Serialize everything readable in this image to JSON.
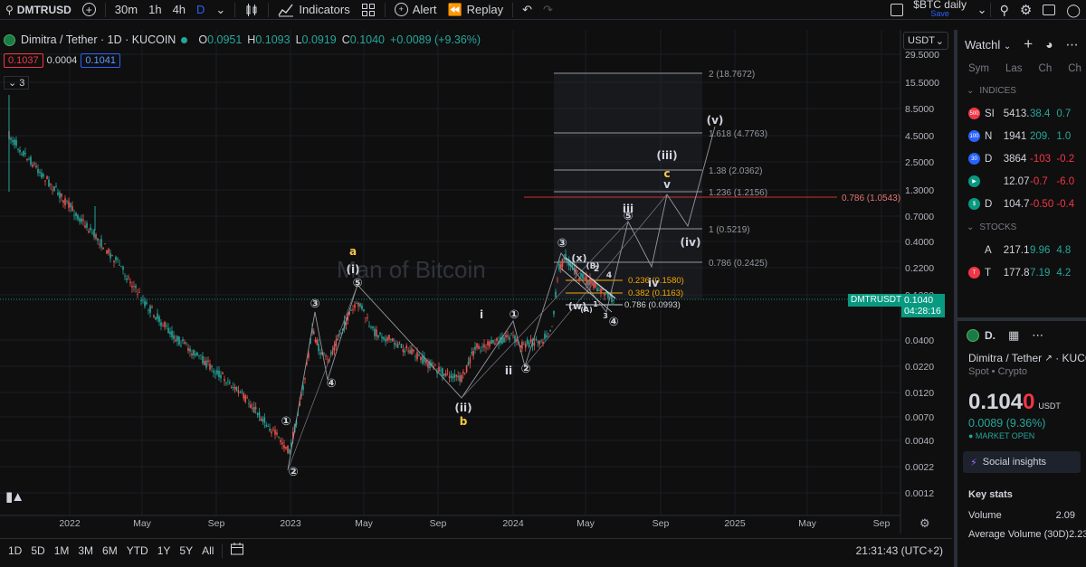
{
  "toolbar": {
    "symbol": "DMTRUSD",
    "timeframes": [
      "30m",
      "1h",
      "4h",
      "D"
    ],
    "indicators": "Indicators",
    "alert": "Alert",
    "replay": "Replay",
    "layout_name": "$BTC daily",
    "layout_save": "Save"
  },
  "legend": {
    "title": "Dimitra / Tether · 1D · KUCOIN",
    "o_label": "O",
    "o_value": "0.0951",
    "h_label": "H",
    "h_value": "0.1093",
    "l_label": "L",
    "l_value": "0.0919",
    "c_label": "C",
    "c_value": "0.1040",
    "change": "+0.0089 (+9.36%)",
    "bid": "0.1037",
    "spread": "0.0004",
    "ask": "0.1041",
    "indicator_count": "3"
  },
  "currency_selector": "USDT",
  "price_axis": [
    "29.5000",
    "15.5000",
    "8.5000",
    "4.5000",
    "2.5000",
    "1.3000",
    "0.7000",
    "0.4000",
    "0.2200",
    "0.1200",
    "0.0400",
    "0.0220",
    "0.0120",
    "0.0070",
    "0.0040",
    "0.0022",
    "0.0012"
  ],
  "time_axis": [
    "2022",
    "May",
    "Sep",
    "2023",
    "May",
    "Sep",
    "2024",
    "May",
    "Sep",
    "2025",
    "May",
    "Sep"
  ],
  "last_price_tag": {
    "symbol": "DMTRUSDT",
    "price": "0.1040",
    "countdown": "04:28:16"
  },
  "watermark": "Man of Bitcoin",
  "fib_levels": [
    "2 (18.7672)",
    "1.618 (4.7763)",
    "1.38 (2.0362)",
    "1.236 (1.2156)",
    "1 (0.5219)",
    "0.786 (0.2425)"
  ],
  "fib_red": "0.786 (1.0543)",
  "fib_small": [
    "0.236 (0.1580)",
    "0.382 (0.1163)",
    "0.786 (0.0993)"
  ],
  "wave_labels": {
    "a": "a",
    "b": "b",
    "c": "c",
    "i_paren": "(i)",
    "ii_paren": "(ii)",
    "iii_paren": "(iii)",
    "iv_paren": "(iv)",
    "v_paren": "(v)",
    "w_paren": "(w)",
    "x_paren": "(x)",
    "i": "i",
    "ii": "ii",
    "iii": "iii",
    "iv": "iv",
    "v": "v",
    "c1": "①",
    "c2": "②",
    "c3": "③",
    "c4": "④",
    "c5": "⑤",
    "n4": "4",
    "n3": "3",
    "n2": "2",
    "n1": "1",
    "A": "(A)",
    "B": "(B)"
  },
  "bottom": {
    "ranges": [
      "1D",
      "5D",
      "1M",
      "3M",
      "6M",
      "YTD",
      "1Y",
      "5Y",
      "All"
    ],
    "clock": "21:31:43 (UTC+2)"
  },
  "watchlist": {
    "title": "Watchl",
    "columns": [
      "Sym",
      "Las",
      "Ch",
      "Ch"
    ],
    "section_indices": "INDICES",
    "indices": [
      {
        "icon": "500",
        "color": "#f23645",
        "sym": "SI",
        "last": "5413.",
        "ch": "38.4",
        "chp": "0.7",
        "dir": "pos"
      },
      {
        "icon": "100",
        "color": "#2962ff",
        "sym": "N",
        "last": "1941",
        "ch": "209.",
        "chp": "1.0",
        "dir": "pos"
      },
      {
        "icon": "30",
        "color": "#2962ff",
        "sym": "D",
        "last": "3864",
        "ch": "-103",
        "chp": "-0.2",
        "dir": "neg"
      },
      {
        "icon": "▶",
        "color": "#089981",
        "sym": "",
        "last": "12.07",
        "ch": "-0.7",
        "chp": "-6.0",
        "dir": "neg"
      },
      {
        "icon": "$",
        "color": "#089981",
        "sym": "D",
        "last": "104.7",
        "ch": "-0.50",
        "chp": "-0.4",
        "dir": "neg"
      }
    ],
    "section_stocks": "STOCKS",
    "stocks": [
      {
        "icon": "",
        "color": "#0f0f0f",
        "sym": "A",
        "last": "217.1",
        "ch": "9.96",
        "chp": "4.8",
        "dir": "pos"
      },
      {
        "icon": "T",
        "color": "#f23645",
        "sym": "T",
        "last": "177.8",
        "ch": "7.19",
        "chp": "4.2",
        "dir": "pos"
      }
    ]
  },
  "details": {
    "symbol_short": "D.",
    "name": "Dimitra / Tether",
    "exchange": "KUCOIN",
    "type": "Spot • Crypto",
    "price_main": "0.104",
    "price_last_digit": "0",
    "currency": "USDT",
    "change": "0.0089 (9.36%)",
    "market": "● MARKET OPEN",
    "social": "Social insights",
    "key_stats": "Key stats",
    "volume_label": "Volume",
    "volume_value": "2.09",
    "avg_volume_label": "Average Volume (30D)",
    "avg_volume_value": "2.23"
  }
}
